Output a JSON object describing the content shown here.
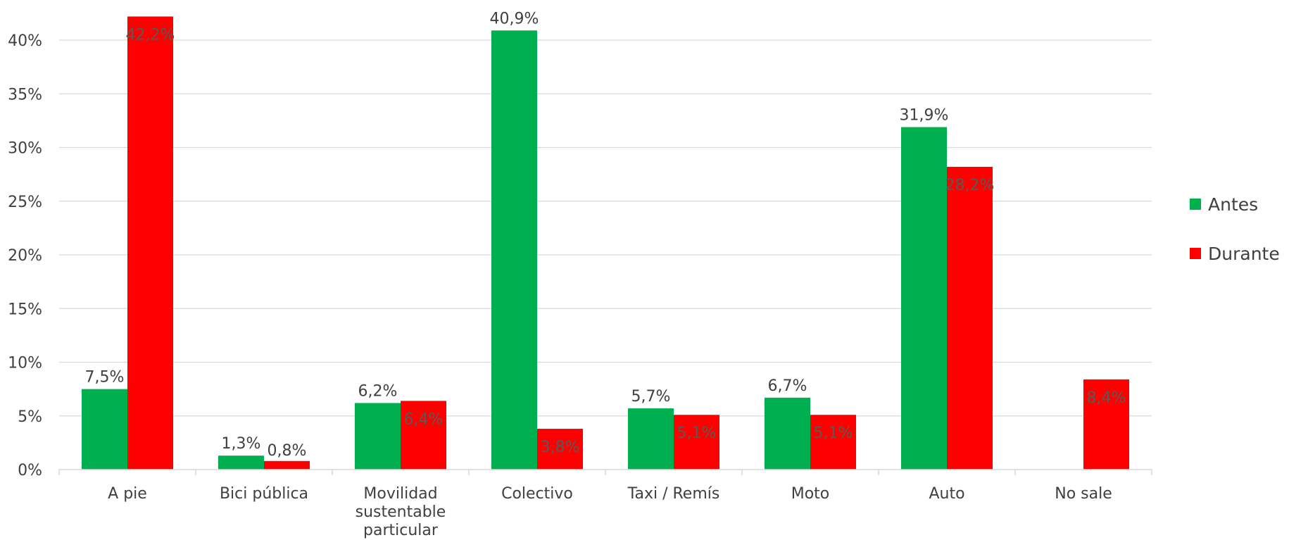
{
  "chart_data": {
    "type": "bar",
    "categories": [
      "A pie",
      "Bici pública",
      "Movilidad sustentable particular",
      "Colectivo",
      "Taxi / Remís",
      "Moto",
      "Auto",
      "No sale"
    ],
    "category_lines": [
      [
        "A pie"
      ],
      [
        "Bici pública"
      ],
      [
        "Movilidad",
        "sustentable",
        "particular"
      ],
      [
        "Colectivo"
      ],
      [
        "Taxi / Remís"
      ],
      [
        "Moto"
      ],
      [
        "Auto"
      ],
      [
        "No sale"
      ]
    ],
    "series": [
      {
        "name": "Antes",
        "color": "#00b050",
        "values": [
          7.5,
          1.3,
          6.2,
          40.9,
          5.7,
          6.7,
          31.9,
          null
        ],
        "labels": [
          "7,5%",
          "1,3%",
          "6,2%",
          "40,9%",
          "5,7%",
          "6,7%",
          "31,9%",
          ""
        ]
      },
      {
        "name": "Durante",
        "color": "#ff0000",
        "values": [
          42.2,
          0.8,
          6.4,
          3.8,
          5.1,
          5.1,
          28.2,
          8.4
        ],
        "labels": [
          "42,2%",
          "0,8%",
          "6,4%",
          "3,8%",
          "5,1%",
          "5,1%",
          "28,2%",
          "8,4%"
        ]
      }
    ],
    "y_ticks": [
      "0%",
      "5%",
      "10%",
      "15%",
      "20%",
      "25%",
      "30%",
      "35%",
      "40%"
    ],
    "ylim": [
      0,
      40
    ],
    "grid": true,
    "legend": "right"
  }
}
